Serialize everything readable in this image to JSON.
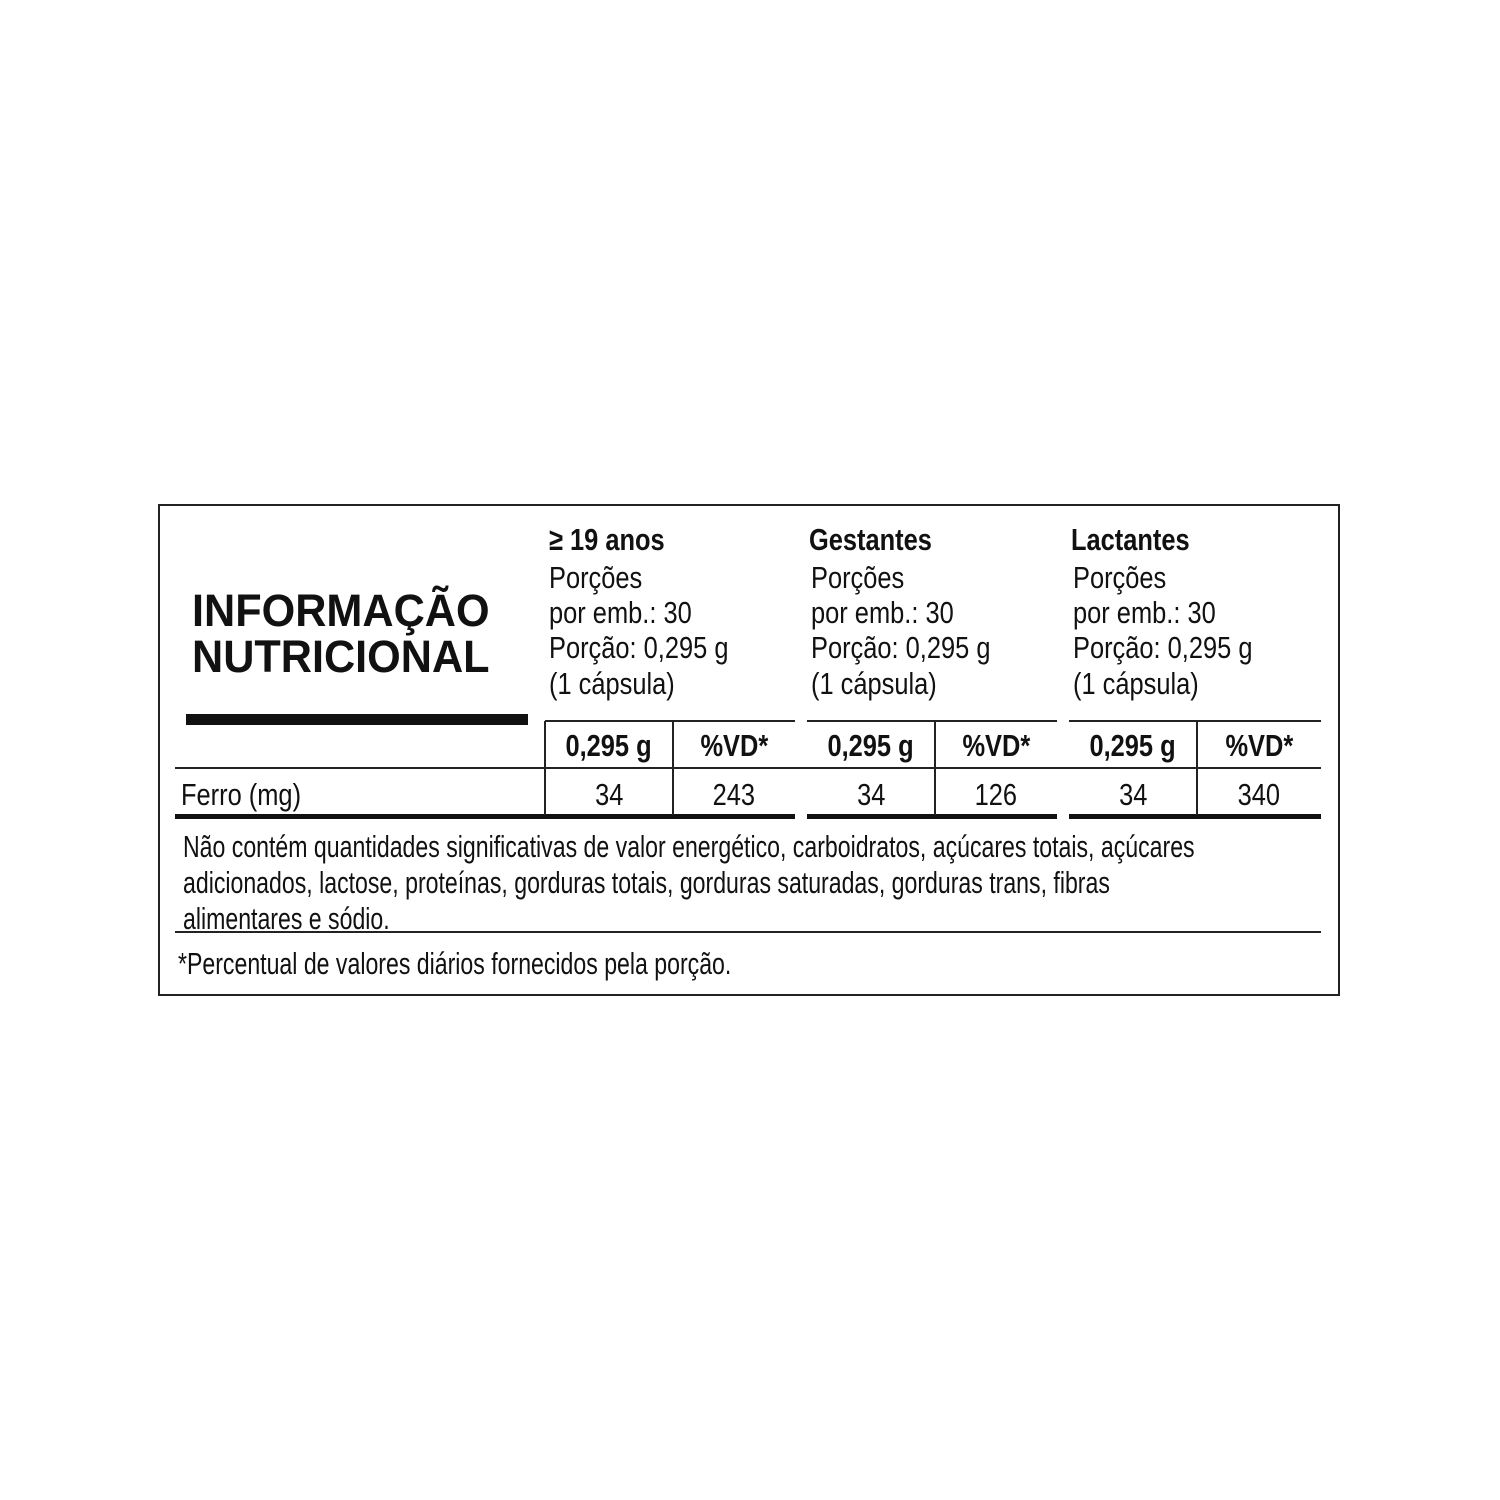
{
  "title": {
    "line1": "INFORMAÇÃO",
    "line2": "NUTRICIONAL"
  },
  "groups": [
    {
      "name": "≥ 19 anos",
      "servings_label": "Porções",
      "servings": "por emb.: 30",
      "portion": "Porção: 0,295 g",
      "portion_unit": "(1 cápsula)",
      "col_amount": "0,295 g",
      "col_vd": "%VD*",
      "ferro_amount": "34",
      "ferro_vd": "243"
    },
    {
      "name": "Gestantes",
      "servings_label": "Porções",
      "servings": "por emb.: 30",
      "portion": "Porção: 0,295 g",
      "portion_unit": "(1 cápsula)",
      "col_amount": "0,295 g",
      "col_vd": "%VD*",
      "ferro_amount": "34",
      "ferro_vd": "126"
    },
    {
      "name": "Lactantes",
      "servings_label": "Porções",
      "servings": "por emb.: 30",
      "portion": "Porção: 0,295 g",
      "portion_unit": "(1 cápsula)",
      "col_amount": "0,295 g",
      "col_vd": "%VD*",
      "ferro_amount": "34",
      "ferro_vd": "340"
    }
  ],
  "nutrient": {
    "label": "Ferro (mg)"
  },
  "note": {
    "line1": "Não contém quantidades significativas de valor energético, carboidratos, açúcares totais, açúcares",
    "line2": "adicionados, lactose, proteínas, gorduras totais, gorduras saturadas, gorduras trans, fibras",
    "line3": "alimentares e sódio."
  },
  "footnote": "*Percentual de valores diários fornecidos pela porção."
}
